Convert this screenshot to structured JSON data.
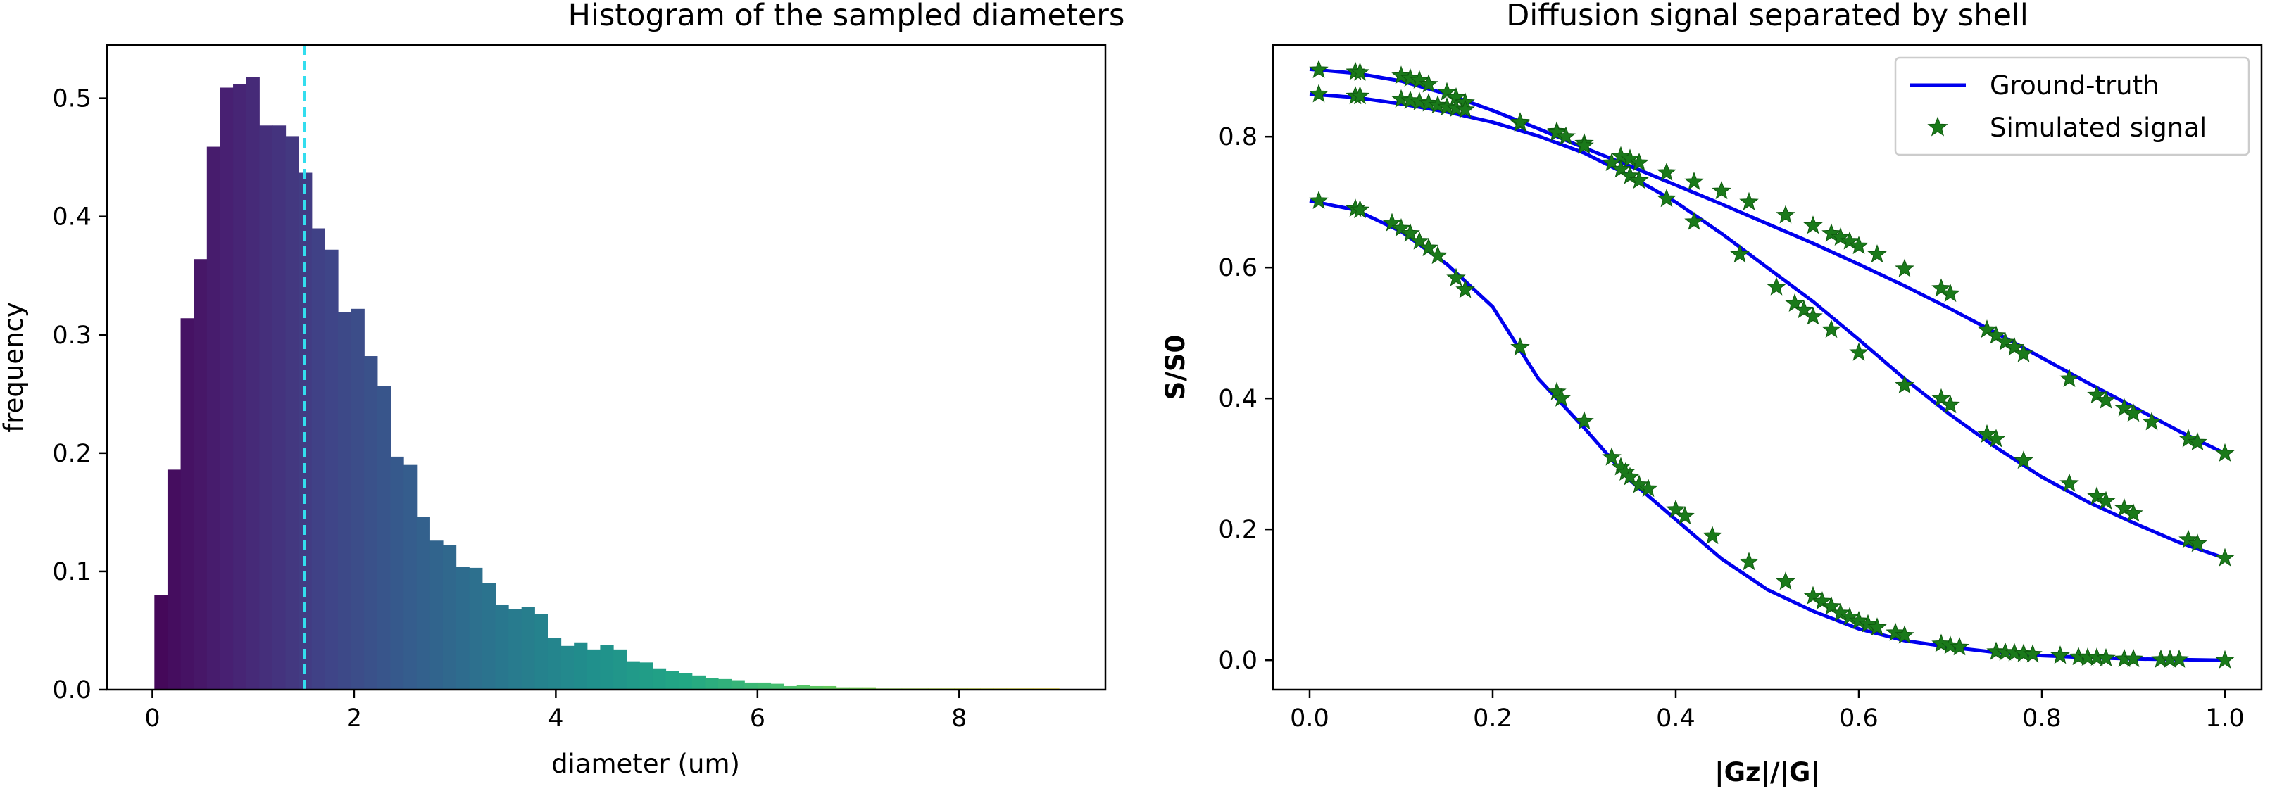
{
  "chart_data": [
    {
      "type": "bar",
      "title": "Histogram of the sampled diameters",
      "xlabel": "diameter (um)",
      "ylabel": "frequency",
      "xlim": [
        -0.45,
        9.45
      ],
      "ylim": [
        0,
        0.545
      ],
      "xticks": [
        0,
        2,
        4,
        6,
        8
      ],
      "yticks": [
        0.0,
        0.1,
        0.2,
        0.3,
        0.4,
        0.5
      ],
      "bin_start": 0.02,
      "bin_width": 0.13,
      "values": [
        0.08,
        0.186,
        0.314,
        0.364,
        0.459,
        0.509,
        0.512,
        0.518,
        0.477,
        0.477,
        0.468,
        0.437,
        0.39,
        0.372,
        0.319,
        0.322,
        0.282,
        0.257,
        0.197,
        0.19,
        0.146,
        0.126,
        0.122,
        0.104,
        0.103,
        0.09,
        0.072,
        0.068,
        0.07,
        0.064,
        0.044,
        0.037,
        0.04,
        0.034,
        0.038,
        0.034,
        0.024,
        0.023,
        0.018,
        0.016,
        0.014,
        0.012,
        0.01,
        0.009,
        0.008,
        0.006,
        0.006,
        0.005,
        0.003,
        0.004,
        0.003,
        0.003,
        0.002,
        0.002,
        0.002,
        0.001,
        0.001,
        0.001,
        0.001,
        0.001,
        0.001,
        0.001,
        0.001,
        0.001,
        0.001,
        0.001,
        0.001,
        0.001,
        0.001
      ],
      "mean_line_x": 1.51,
      "mean_line_color": "#33ddee",
      "colormap": "viridis"
    },
    {
      "type": "line",
      "title": "Diffusion signal separated by shell",
      "xlabel": "|Gz|/|G|",
      "ylabel": "S/S0",
      "xlim": [
        -0.04,
        1.04
      ],
      "ylim": [
        -0.045,
        0.94
      ],
      "xticks": [
        0.0,
        0.2,
        0.4,
        0.6,
        0.8,
        1.0
      ],
      "yticks": [
        0.0,
        0.2,
        0.4,
        0.6,
        0.8
      ],
      "legend_position": "top-right",
      "series": [
        {
          "name": "Ground-truth",
          "color": "#0000ee",
          "curves": [
            {
              "x": [
                0.0,
                0.05,
                0.1,
                0.15,
                0.2,
                0.25,
                0.3,
                0.35,
                0.4,
                0.45,
                0.5,
                0.55,
                0.6,
                0.65,
                0.7,
                0.75,
                0.8,
                0.85,
                0.9,
                0.95,
                1.0
              ],
              "y": [
                0.903,
                0.897,
                0.885,
                0.865,
                0.84,
                0.812,
                0.783,
                0.755,
                0.726,
                0.697,
                0.667,
                0.637,
                0.605,
                0.572,
                0.537,
                0.5,
                0.462,
                0.424,
                0.387,
                0.35,
                0.316
              ]
            },
            {
              "x": [
                0.0,
                0.05,
                0.1,
                0.15,
                0.2,
                0.25,
                0.3,
                0.35,
                0.4,
                0.45,
                0.5,
                0.55,
                0.6,
                0.65,
                0.7,
                0.75,
                0.8,
                0.85,
                0.9,
                0.95,
                1.0
              ],
              "y": [
                0.865,
                0.86,
                0.85,
                0.838,
                0.822,
                0.801,
                0.775,
                0.74,
                0.7,
                0.652,
                0.6,
                0.548,
                0.49,
                0.43,
                0.375,
                0.325,
                0.28,
                0.242,
                0.21,
                0.18,
                0.156
              ]
            },
            {
              "x": [
                0.0,
                0.05,
                0.1,
                0.15,
                0.2,
                0.25,
                0.3,
                0.35,
                0.4,
                0.45,
                0.5,
                0.55,
                0.6,
                0.65,
                0.7,
                0.75,
                0.8,
                0.85,
                0.9,
                0.95,
                1.0
              ],
              "y": [
                0.702,
                0.688,
                0.655,
                0.605,
                0.54,
                0.43,
                0.355,
                0.275,
                0.215,
                0.155,
                0.108,
                0.075,
                0.048,
                0.03,
                0.02,
                0.012,
                0.007,
                0.004,
                0.002,
                0.001,
                0.0
              ]
            }
          ]
        },
        {
          "name": "Simulated signal",
          "color": "#1a7a1a",
          "points": [
            {
              "x": [
                0.01,
                0.05,
                0.055,
                0.1,
                0.11,
                0.12,
                0.13,
                0.15,
                0.16,
                0.17,
                0.23,
                0.27,
                0.28,
                0.3,
                0.34,
                0.35,
                0.36,
                0.39,
                0.42,
                0.45,
                0.48,
                0.52,
                0.55,
                0.57,
                0.58,
                0.59,
                0.6,
                0.62,
                0.65,
                0.69,
                0.7,
                0.74,
                0.75,
                0.76,
                0.77,
                0.78,
                0.83,
                0.86,
                0.87,
                0.89,
                0.9,
                0.92,
                0.96,
                0.97,
                1.0
              ],
              "y": [
                0.902,
                0.899,
                0.898,
                0.893,
                0.889,
                0.886,
                0.88,
                0.868,
                0.86,
                0.852,
                0.82,
                0.808,
                0.8,
                0.79,
                0.77,
                0.766,
                0.76,
                0.745,
                0.731,
                0.717,
                0.7,
                0.68,
                0.664,
                0.652,
                0.646,
                0.64,
                0.633,
                0.62,
                0.598,
                0.568,
                0.56,
                0.505,
                0.496,
                0.486,
                0.478,
                0.468,
                0.43,
                0.405,
                0.397,
                0.385,
                0.377,
                0.364,
                0.338,
                0.333,
                0.316
              ]
            },
            {
              "x": [
                0.01,
                0.05,
                0.055,
                0.1,
                0.11,
                0.12,
                0.13,
                0.14,
                0.15,
                0.16,
                0.17,
                0.23,
                0.27,
                0.28,
                0.3,
                0.33,
                0.34,
                0.35,
                0.36,
                0.39,
                0.42,
                0.47,
                0.51,
                0.53,
                0.54,
                0.55,
                0.57,
                0.6,
                0.65,
                0.69,
                0.7,
                0.74,
                0.75,
                0.78,
                0.83,
                0.86,
                0.87,
                0.89,
                0.9,
                0.96,
                0.97,
                1.0
              ],
              "y": [
                0.865,
                0.862,
                0.862,
                0.857,
                0.855,
                0.853,
                0.851,
                0.848,
                0.845,
                0.843,
                0.841,
                0.822,
                0.806,
                0.8,
                0.786,
                0.76,
                0.75,
                0.74,
                0.733,
                0.705,
                0.67,
                0.62,
                0.57,
                0.545,
                0.535,
                0.525,
                0.505,
                0.47,
                0.42,
                0.4,
                0.39,
                0.345,
                0.338,
                0.305,
                0.27,
                0.25,
                0.243,
                0.232,
                0.224,
                0.184,
                0.178,
                0.156
              ]
            },
            {
              "x": [
                0.01,
                0.05,
                0.055,
                0.09,
                0.1,
                0.11,
                0.12,
                0.13,
                0.14,
                0.16,
                0.17,
                0.23,
                0.27,
                0.275,
                0.3,
                0.33,
                0.34,
                0.345,
                0.35,
                0.36,
                0.37,
                0.4,
                0.41,
                0.44,
                0.48,
                0.52,
                0.55,
                0.56,
                0.57,
                0.58,
                0.59,
                0.6,
                0.61,
                0.62,
                0.64,
                0.65,
                0.69,
                0.7,
                0.71,
                0.75,
                0.76,
                0.77,
                0.78,
                0.79,
                0.82,
                0.84,
                0.85,
                0.86,
                0.87,
                0.89,
                0.9,
                0.93,
                0.94,
                0.95,
                1.0
              ],
              "y": [
                0.702,
                0.69,
                0.688,
                0.668,
                0.66,
                0.652,
                0.64,
                0.63,
                0.618,
                0.584,
                0.566,
                0.478,
                0.41,
                0.4,
                0.365,
                0.31,
                0.295,
                0.287,
                0.28,
                0.268,
                0.262,
                0.23,
                0.22,
                0.19,
                0.15,
                0.12,
                0.098,
                0.09,
                0.082,
                0.072,
                0.066,
                0.06,
                0.055,
                0.05,
                0.042,
                0.038,
                0.025,
                0.022,
                0.02,
                0.013,
                0.012,
                0.011,
                0.01,
                0.009,
                0.007,
                0.005,
                0.004,
                0.004,
                0.003,
                0.002,
                0.002,
                0.001,
                0.001,
                0.001,
                0.0
              ]
            }
          ]
        }
      ]
    }
  ]
}
